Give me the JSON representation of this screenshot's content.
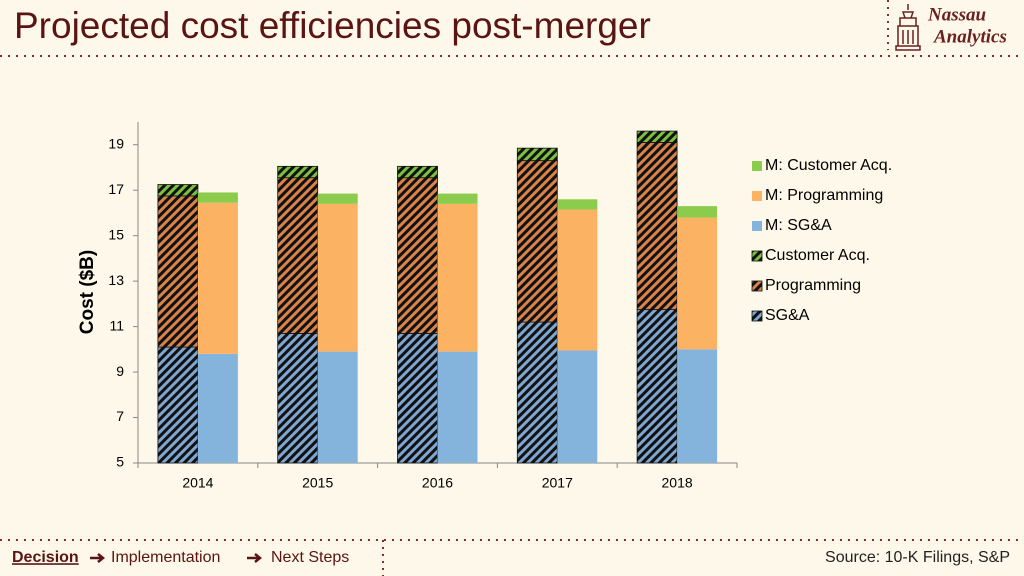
{
  "header": {
    "title": "Projected cost efficiencies post-merger",
    "logo": [
      "Nassau",
      "Analytics"
    ]
  },
  "chart_data": {
    "type": "stacked-bar",
    "categories": [
      "2014",
      "2015",
      "2016",
      "2017",
      "2018"
    ],
    "y_label": "Cost ($B)",
    "ylim": [
      5,
      20
    ],
    "yticks": [
      5,
      7,
      9,
      11,
      13,
      15,
      17,
      19
    ],
    "legend": "right",
    "series": [
      {
        "name": "SG&A",
        "stack": "current",
        "pattern": "hatch",
        "color": "#7ea6d0",
        "values": [
          10.1,
          10.7,
          10.7,
          11.2,
          11.75
        ]
      },
      {
        "name": "Programming",
        "stack": "current",
        "pattern": "hatch",
        "color": "#d9834a",
        "values": [
          6.65,
          6.85,
          6.85,
          7.1,
          7.35
        ]
      },
      {
        "name": "Customer Acq.",
        "stack": "current",
        "pattern": "hatch",
        "color": "#7cc040",
        "values": [
          0.5,
          0.5,
          0.5,
          0.55,
          0.5
        ]
      },
      {
        "name": "M: SG&A",
        "stack": "merged",
        "color": "#84b4dc",
        "values": [
          9.8,
          9.9,
          9.9,
          9.95,
          10.0
        ]
      },
      {
        "name": "M: Programming",
        "stack": "merged",
        "color": "#fbb263",
        "values": [
          6.65,
          6.5,
          6.5,
          6.2,
          5.8
        ]
      },
      {
        "name": "M: Customer Acq.",
        "stack": "merged",
        "color": "#8ccc4c",
        "values": [
          0.45,
          0.45,
          0.45,
          0.45,
          0.5
        ]
      }
    ]
  },
  "footer": {
    "steps": [
      "Decision",
      "Implementation",
      "Next Steps"
    ],
    "source": "Source: 10-K Filings, S&P"
  }
}
